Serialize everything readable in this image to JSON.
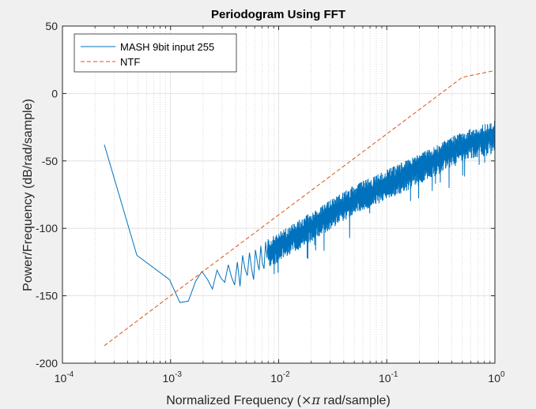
{
  "chart_data": {
    "type": "line",
    "title": "Periodogram Using FFT",
    "xlabel_parts": [
      "Normalized Frequency (",
      "×",
      "π",
      " rad/sample)"
    ],
    "ylabel": "Power/Frequency (dB/rad/sample)",
    "xscale": "log",
    "xlim": [
      0.0001,
      1
    ],
    "ylim": [
      -200,
      50
    ],
    "x_ticks": [
      0.0001,
      0.001,
      0.01,
      0.1,
      1
    ],
    "x_tick_labels": [
      {
        "base": "10",
        "exp": "-4"
      },
      {
        "base": "10",
        "exp": "-3"
      },
      {
        "base": "10",
        "exp": "-2"
      },
      {
        "base": "10",
        "exp": "-1"
      },
      {
        "base": "10",
        "exp": "0"
      }
    ],
    "y_ticks": [
      -200,
      -150,
      -100,
      -50,
      0,
      50
    ],
    "y_tick_labels": [
      "-200",
      "-150",
      "-100",
      "-50",
      "0",
      "50"
    ],
    "grid": true,
    "minor_grid": true,
    "legend_position": "top-left",
    "series": [
      {
        "name": "MASH 9bit input 255",
        "color": "#0072bd",
        "style": "solid",
        "noisy_above": 0.008,
        "points": [
          [
            0.000244,
            -38
          ],
          [
            0.000488,
            -120
          ],
          [
            0.000977,
            -138
          ],
          [
            0.00122,
            -155
          ],
          [
            0.00146,
            -154
          ],
          [
            0.00171,
            -139
          ],
          [
            0.00195,
            -132
          ],
          [
            0.0022,
            -138
          ],
          [
            0.00244,
            -145
          ],
          [
            0.00269,
            -131
          ],
          [
            0.00293,
            -137
          ],
          [
            0.00317,
            -140
          ],
          [
            0.00342,
            -127
          ],
          [
            0.00366,
            -136
          ],
          [
            0.00391,
            -142
          ],
          [
            0.00415,
            -125
          ],
          [
            0.00439,
            -143
          ],
          [
            0.00464,
            -120
          ],
          [
            0.00488,
            -130
          ],
          [
            0.00513,
            -135
          ],
          [
            0.00537,
            -118
          ],
          [
            0.00562,
            -130
          ],
          [
            0.00586,
            -138
          ],
          [
            0.0061,
            -116
          ],
          [
            0.00635,
            -125
          ],
          [
            0.00659,
            -131
          ],
          [
            0.00684,
            -113
          ],
          [
            0.00708,
            -126
          ],
          [
            0.00732,
            -130
          ],
          [
            0.00757,
            -110
          ],
          [
            0.00781,
            -122
          ],
          [
            0.008,
            -108
          ]
        ],
        "trend": {
          "x": [
            0.008,
            0.05,
            0.2,
            0.5,
            1
          ],
          "upper": [
            -108,
            -68,
            -45,
            -28,
            -20
          ],
          "lower": [
            -130,
            -90,
            -68,
            -50,
            -45
          ]
        }
      },
      {
        "name": "NTF",
        "color": "#d95319",
        "style": "dashed",
        "x": [
          0.000244,
          0.001,
          0.01,
          0.1,
          0.5,
          1
        ],
        "y": [
          -187,
          -150,
          -90,
          -30,
          12,
          17
        ]
      }
    ]
  }
}
